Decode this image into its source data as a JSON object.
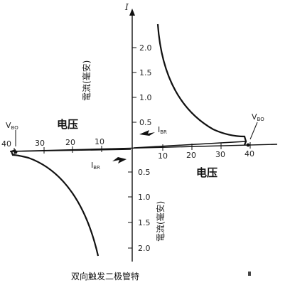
{
  "y_axis_title": "I",
  "x_ticks_left": [
    "40",
    "30",
    "20",
    "10"
  ],
  "x_ticks_right": [
    "10",
    "20",
    "30",
    "40"
  ],
  "y_ticks_upper": [
    "2.0",
    "1.5",
    "1.0",
    "0.5"
  ],
  "y_ticks_lower": [
    "0.5",
    "1.0",
    "1.5",
    "2.0"
  ],
  "label_voltage_left": "电压",
  "label_voltage_right": "电压",
  "label_current_upper": "電流(毫安)",
  "label_current_lower": "電流(毫安)",
  "vbo_left": {
    "main": "V",
    "sub": "BO"
  },
  "vbo_right": {
    "main": "V",
    "sub": "BO"
  },
  "ibr_upper": {
    "main": "I",
    "sub": "BR"
  },
  "ibr_lower": {
    "main": "I",
    "sub": "BR"
  },
  "caption": "双向触发二极管特",
  "colors": {
    "ink": "#111111",
    "background": "#ffffff"
  }
}
